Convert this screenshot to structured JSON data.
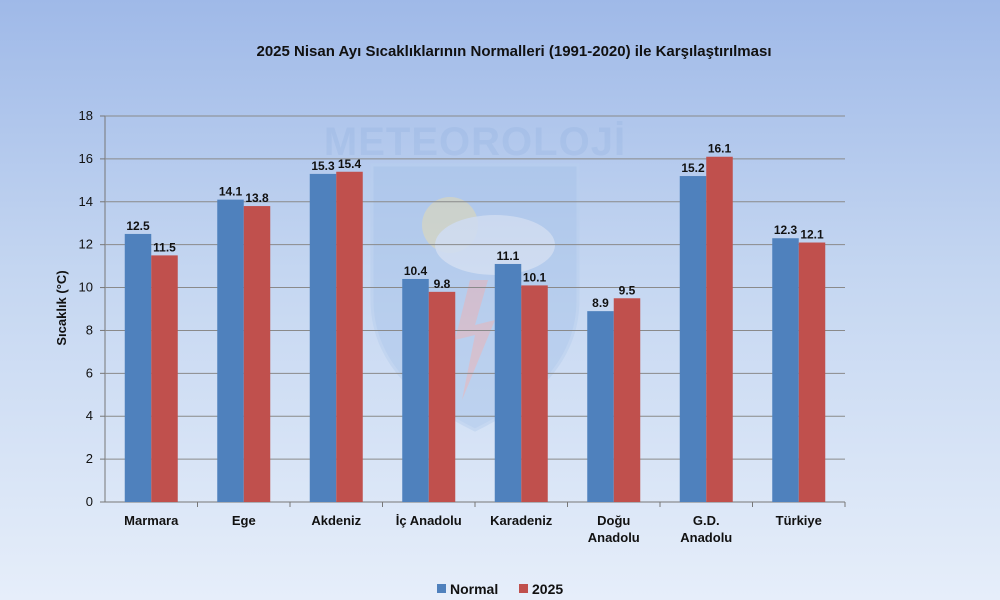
{
  "chart_data": {
    "type": "bar",
    "title": "2025 Nisan Ayı Sıcaklıklarının Normalleri (1991-2020) ile Karşılaştırılması",
    "ylabel": "Sıcaklık (°C)",
    "xlabel": "",
    "ylim": [
      0,
      18
    ],
    "yticks": [
      0,
      2,
      4,
      6,
      8,
      10,
      12,
      14,
      16,
      18
    ],
    "grid": true,
    "legend_position": "bottom",
    "categories": [
      [
        "Marmara"
      ],
      [
        "Ege"
      ],
      [
        "Akdeniz"
      ],
      [
        "İç Anadolu"
      ],
      [
        "Karadeniz"
      ],
      [
        "Doğu",
        "Anadolu"
      ],
      [
        "G.D.",
        "Anadolu"
      ],
      [
        "Türkiye"
      ]
    ],
    "series": [
      {
        "name": "Normal",
        "color": "#4f81bd",
        "values": [
          12.5,
          14.1,
          15.3,
          10.4,
          11.1,
          8.9,
          15.2,
          12.3
        ],
        "labels": [
          "12.5",
          "14.1",
          "15.3",
          "10.4",
          "11.1",
          "8.9",
          "15.2",
          "12.3"
        ]
      },
      {
        "name": "2025",
        "color": "#c0504d",
        "values": [
          11.5,
          13.8,
          15.4,
          9.8,
          10.1,
          9.5,
          16.1,
          12.1
        ],
        "labels": [
          "11.5",
          "13.8",
          "15.4",
          "9.8",
          "10.1",
          "9.5",
          "16.1",
          "12.1"
        ]
      }
    ],
    "watermark": {
      "text": "METEOROLOJİ",
      "icon": "meteoroloji-logo-icon"
    }
  }
}
